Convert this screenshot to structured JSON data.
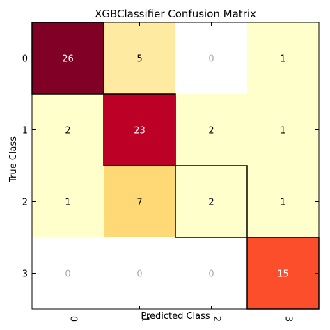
{
  "chart_data": {
    "type": "heatmap",
    "title": "XGBClassifier Confusion Matrix",
    "xlabel": "Predicted Class",
    "ylabel": "True Class",
    "x_categories": [
      "0",
      "1",
      "2",
      "3"
    ],
    "y_categories": [
      "0",
      "1",
      "2",
      "3"
    ],
    "values": [
      [
        26,
        5,
        0,
        1
      ],
      [
        2,
        23,
        2,
        1
      ],
      [
        1,
        7,
        2,
        1
      ],
      [
        0,
        0,
        0,
        15
      ]
    ],
    "cell_colors": [
      [
        "#800026",
        "#feeaa0",
        "#ffffff",
        "#ffffcc"
      ],
      [
        "#ffffcc",
        "#bd0026",
        "#ffffcc",
        "#ffffcc"
      ],
      [
        "#ffffcc",
        "#fed976",
        "#ffffcc",
        "#ffffcc"
      ],
      [
        "#ffffff",
        "#ffffff",
        "#ffffff",
        "#fc4e2a"
      ]
    ],
    "text_colors": {
      "light_text": "#ffffff",
      "dark_text": "#000000",
      "zero_text": "#aaaaaa"
    },
    "colormap": "YlOrRd",
    "grid": false,
    "diagonal_outlined": true
  }
}
